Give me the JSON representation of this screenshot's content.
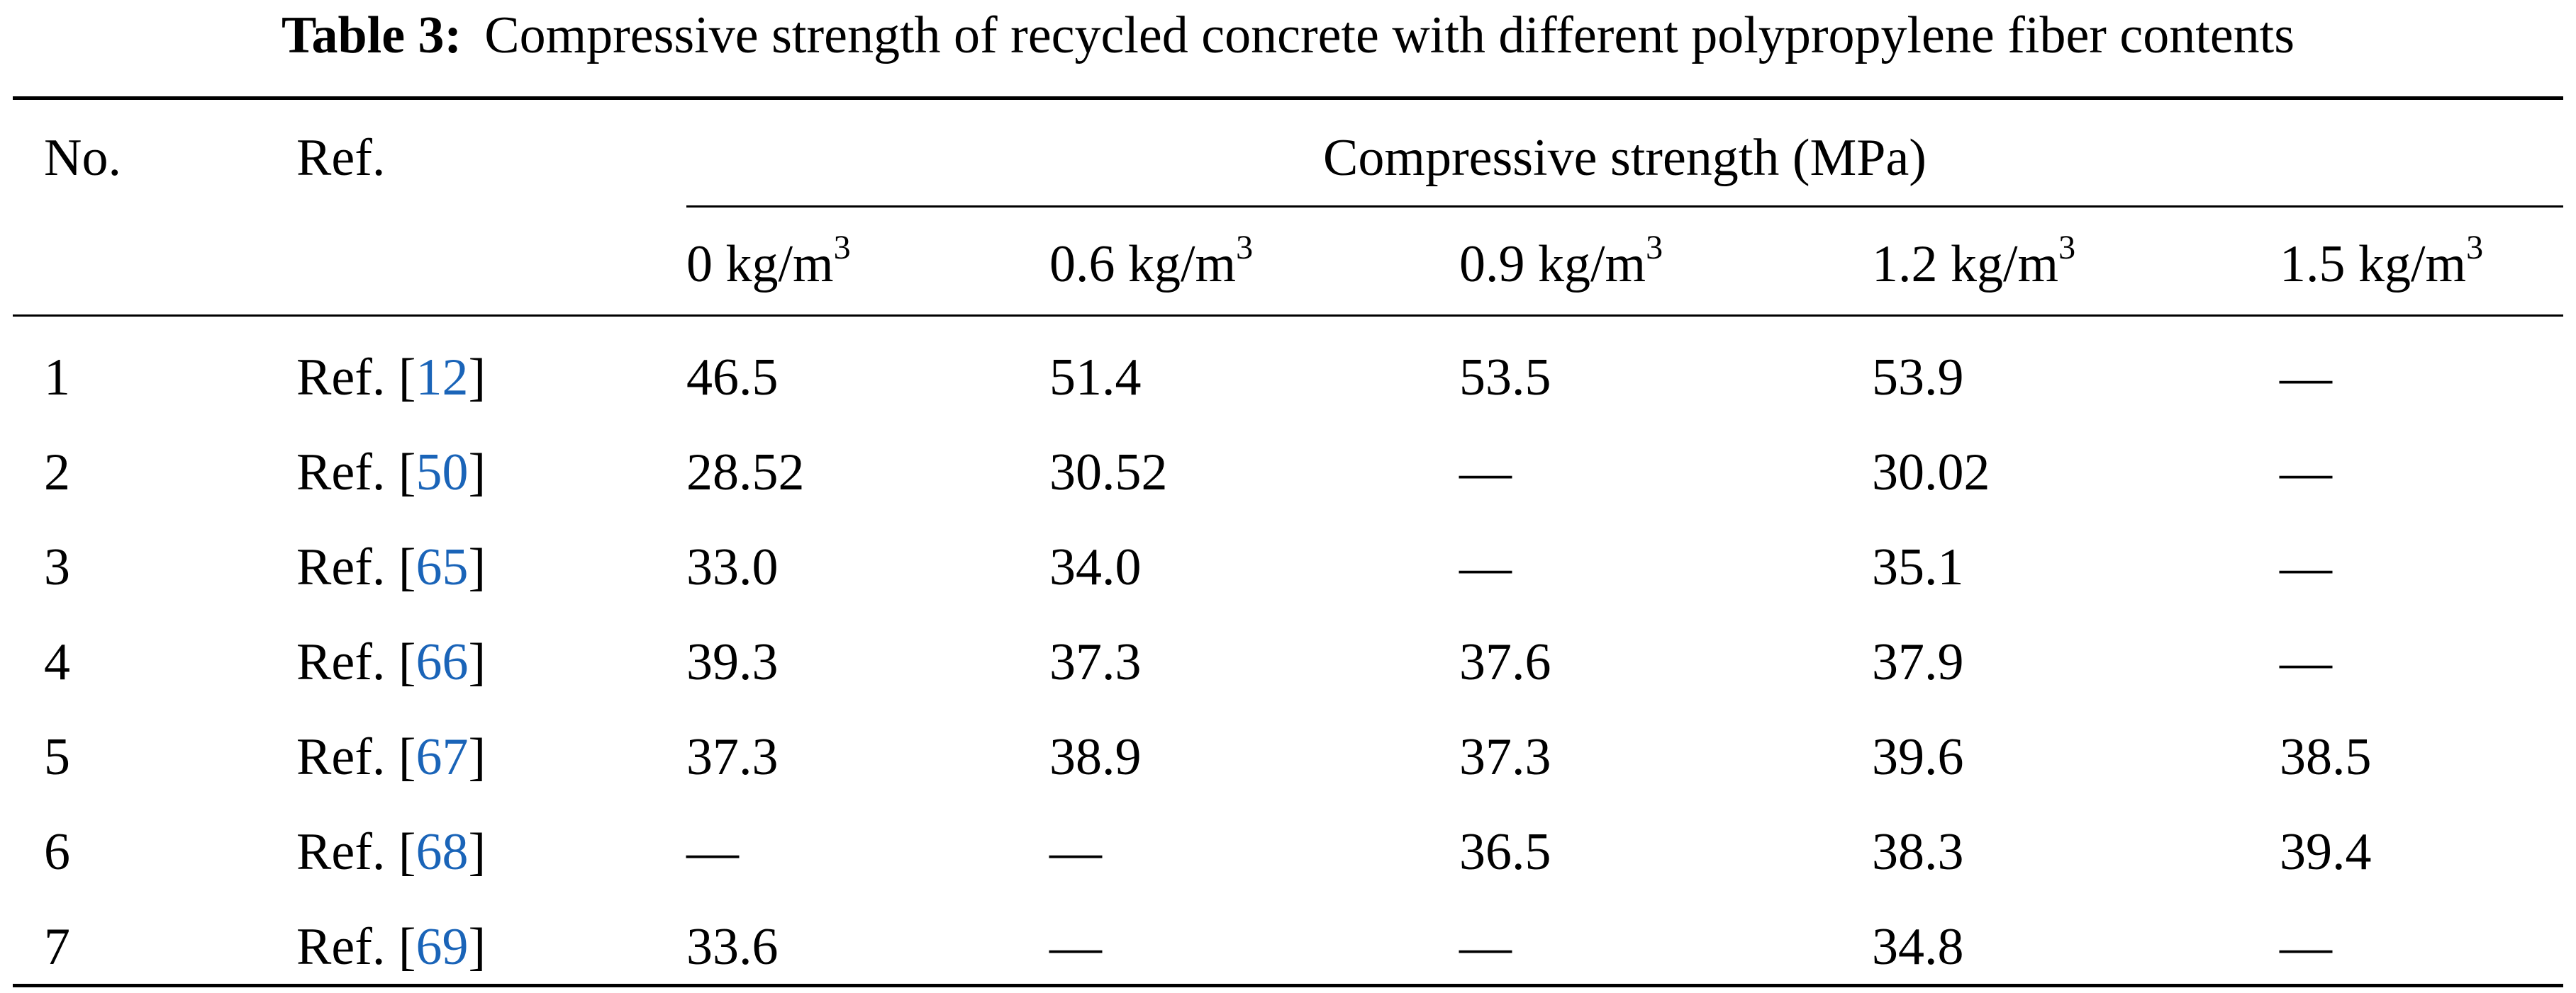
{
  "table": {
    "caption_label": "Table 3:",
    "caption_text": "Compressive strength of recycled concrete with different polypropylene fiber contents",
    "col_no": "No.",
    "col_ref": "Ref.",
    "group_header": "Compressive strength (MPa)",
    "unit_base": "kg/m",
    "unit_exp": "3",
    "contents": [
      "0",
      "0.6",
      "0.9",
      "1.2",
      "1.5"
    ],
    "ref_prefix": "Ref. [",
    "ref_suffix": "]",
    "link_color": "#1a64b8",
    "rows": [
      {
        "no": "1",
        "ref": "12",
        "values": [
          "46.5",
          "51.4",
          "53.5",
          "53.9",
          "—"
        ]
      },
      {
        "no": "2",
        "ref": "50",
        "values": [
          "28.52",
          "30.52",
          "—",
          "30.02",
          "—"
        ]
      },
      {
        "no": "3",
        "ref": "65",
        "values": [
          "33.0",
          "34.0",
          "—",
          "35.1",
          "—"
        ]
      },
      {
        "no": "4",
        "ref": "66",
        "values": [
          "39.3",
          "37.3",
          "37.6",
          "37.9",
          "—"
        ]
      },
      {
        "no": "5",
        "ref": "67",
        "values": [
          "37.3",
          "38.9",
          "37.3",
          "39.6",
          "38.5"
        ]
      },
      {
        "no": "6",
        "ref": "68",
        "values": [
          "—",
          "—",
          "36.5",
          "38.3",
          "39.4"
        ]
      },
      {
        "no": "7",
        "ref": "69",
        "values": [
          "33.6",
          "—",
          "—",
          "34.8",
          "—"
        ]
      }
    ]
  }
}
